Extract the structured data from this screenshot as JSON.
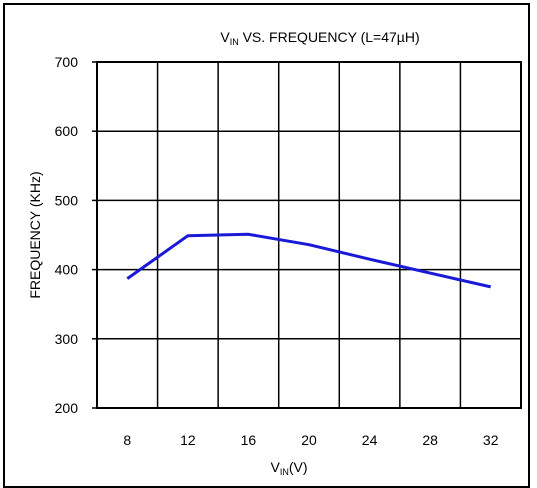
{
  "chart_data": {
    "type": "line",
    "title": {
      "main": "V",
      "sub": "IN",
      "rest": " VS. FREQUENCY (L=47µH)"
    },
    "xlabel": {
      "main": "V",
      "sub": "IN",
      "rest": "(V)"
    },
    "ylabel": "FREQUENCY (KHz)",
    "xlim": [
      6,
      34
    ],
    "ylim": [
      200,
      700
    ],
    "x_ticks": [
      8,
      12,
      16,
      20,
      24,
      28,
      32
    ],
    "y_ticks": [
      200,
      300,
      400,
      500,
      600,
      700
    ],
    "grid": true,
    "series": [
      {
        "color": "#1a1ad6",
        "x": [
          8,
          12,
          16,
          20,
          24,
          28,
          32
        ],
        "y": [
          387,
          449,
          451,
          436,
          415,
          395,
          375
        ]
      }
    ]
  }
}
